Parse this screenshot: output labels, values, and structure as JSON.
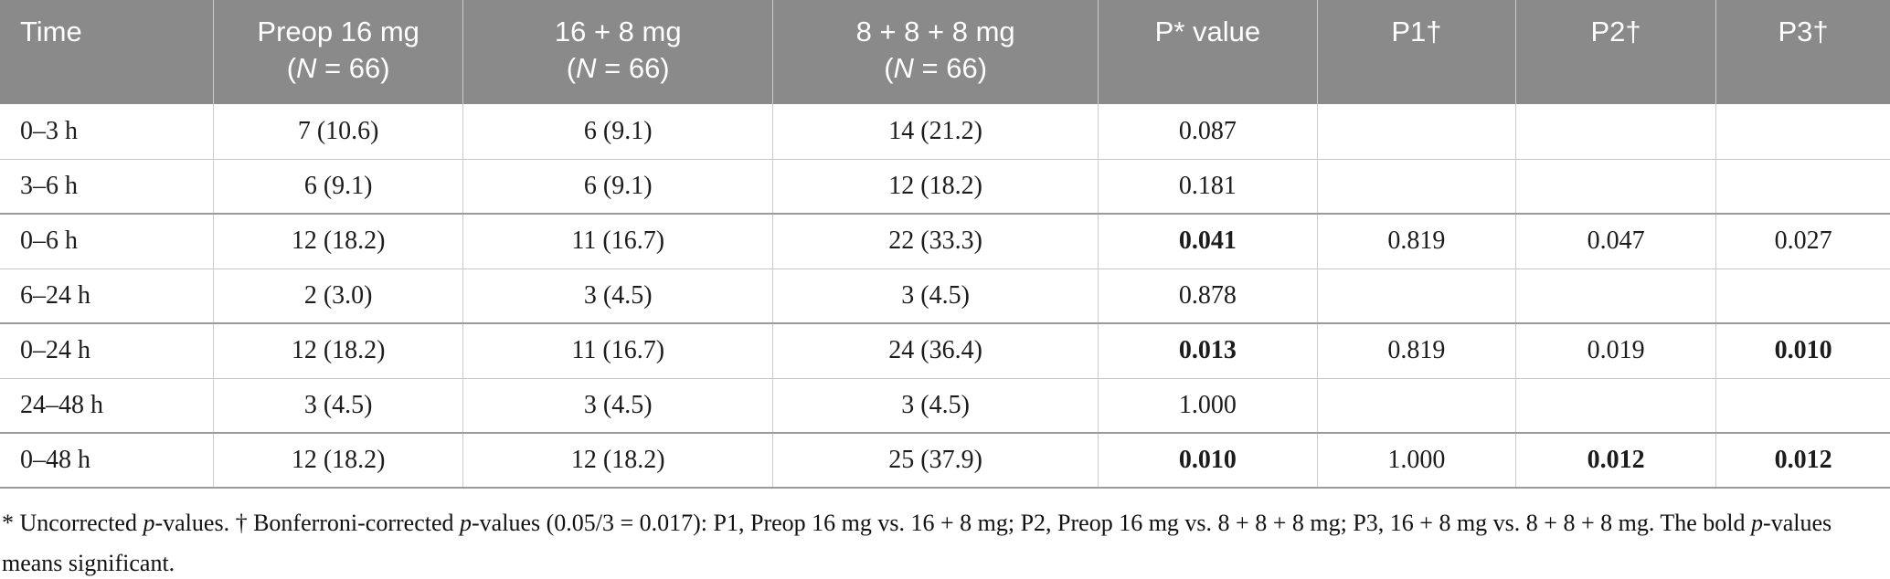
{
  "table": {
    "columns": [
      {
        "label": "Time",
        "sub": []
      },
      {
        "label": "Preop 16 mg",
        "sub": [
          {
            "t": "("
          },
          {
            "t": "N",
            "i": true
          },
          {
            "t": " = 66)"
          }
        ]
      },
      {
        "label": "16 + 8 mg",
        "sub": [
          {
            "t": "("
          },
          {
            "t": "N",
            "i": true
          },
          {
            "t": " = 66)"
          }
        ]
      },
      {
        "label": "8 + 8 + 8 mg",
        "sub": [
          {
            "t": "("
          },
          {
            "t": "N",
            "i": true
          },
          {
            "t": " = 66)"
          }
        ]
      },
      {
        "label": "P* value",
        "sub": []
      },
      {
        "label": "P1†",
        "sub": []
      },
      {
        "label": "P2†",
        "sub": []
      },
      {
        "label": "P3†",
        "sub": []
      }
    ],
    "rows": [
      {
        "cells": [
          {
            "t": "0–3 h"
          },
          {
            "t": "7 (10.6)"
          },
          {
            "t": "6 (9.1)"
          },
          {
            "t": "14 (21.2)"
          },
          {
            "t": "0.087"
          },
          {
            "t": ""
          },
          {
            "t": ""
          },
          {
            "t": ""
          }
        ]
      },
      {
        "cells": [
          {
            "t": "3–6 h"
          },
          {
            "t": "6 (9.1)"
          },
          {
            "t": "6 (9.1)"
          },
          {
            "t": "12 (18.2)"
          },
          {
            "t": "0.181"
          },
          {
            "t": ""
          },
          {
            "t": ""
          },
          {
            "t": ""
          }
        ]
      },
      {
        "cells": [
          {
            "t": "0–6 h"
          },
          {
            "t": "12 (18.2)"
          },
          {
            "t": "11 (16.7)"
          },
          {
            "t": "22 (33.3)"
          },
          {
            "t": "0.041",
            "b": true
          },
          {
            "t": "0.819"
          },
          {
            "t": "0.047"
          },
          {
            "t": "0.027"
          }
        ]
      },
      {
        "cells": [
          {
            "t": "6–24 h"
          },
          {
            "t": "2 (3.0)"
          },
          {
            "t": "3 (4.5)"
          },
          {
            "t": "3 (4.5)"
          },
          {
            "t": "0.878"
          },
          {
            "t": ""
          },
          {
            "t": ""
          },
          {
            "t": ""
          }
        ]
      },
      {
        "cells": [
          {
            "t": "0–24 h"
          },
          {
            "t": "12 (18.2)"
          },
          {
            "t": "11 (16.7)"
          },
          {
            "t": "24 (36.4)"
          },
          {
            "t": "0.013",
            "b": true
          },
          {
            "t": "0.819"
          },
          {
            "t": "0.019"
          },
          {
            "t": "0.010",
            "b": true
          }
        ]
      },
      {
        "cells": [
          {
            "t": "24–48 h"
          },
          {
            "t": "3 (4.5)"
          },
          {
            "t": "3 (4.5)"
          },
          {
            "t": "3 (4.5)"
          },
          {
            "t": "1.000"
          },
          {
            "t": ""
          },
          {
            "t": ""
          },
          {
            "t": ""
          }
        ]
      },
      {
        "cells": [
          {
            "t": "0–48 h"
          },
          {
            "t": "12 (18.2)"
          },
          {
            "t": "12 (18.2)"
          },
          {
            "t": "25 (37.9)"
          },
          {
            "t": "0.010",
            "b": true
          },
          {
            "t": "1.000"
          },
          {
            "t": "0.012",
            "b": true
          },
          {
            "t": "0.012",
            "b": true
          }
        ]
      }
    ]
  },
  "footnote": {
    "segments": [
      {
        "t": "* Uncorrected "
      },
      {
        "t": "p",
        "i": true
      },
      {
        "t": "-values. † Bonferroni-corrected "
      },
      {
        "t": "p",
        "i": true
      },
      {
        "t": "-values (0.05/3 = 0.017): P1, Preop 16 mg vs. 16 + 8 mg; P2, Preop 16 mg vs. 8 + 8 + 8 mg; P3, 16 + 8 mg vs. 8 + 8 + 8 mg. The bold "
      },
      {
        "t": "p",
        "i": true
      },
      {
        "t": "-values"
      },
      {
        "br": true
      },
      {
        "t": "means significant."
      }
    ]
  },
  "colors": {
    "header_bg": "#8a8a8a",
    "header_text": "#ffffff",
    "body_text": "#1c1c1c",
    "rule_light": "#c7c7c7",
    "rule_dark": "#9b9b9b"
  }
}
